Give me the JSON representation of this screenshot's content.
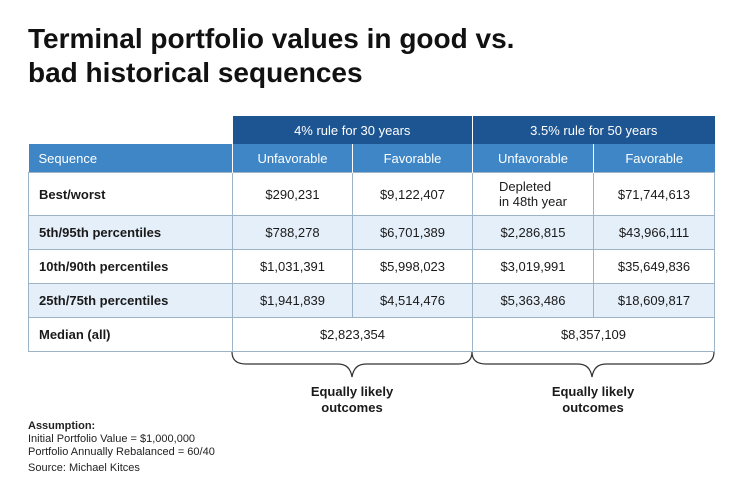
{
  "title": {
    "line1": "Terminal portfolio values in good vs.",
    "line2": "bad historical sequences"
  },
  "table": {
    "group_headers": [
      "",
      "4% rule for 30 years",
      "3.5% rule for 50 years"
    ],
    "column_headers": [
      "Sequence",
      "Unfavorable",
      "Favorable",
      "Unfavorable",
      "Favorable"
    ],
    "rows": [
      {
        "label": "Best/worst",
        "values": [
          "$290,231",
          "$9,122,407",
          "Depleted",
          "$71,744,613"
        ],
        "note": "in 48th year"
      },
      {
        "label": "5th/95th percentiles",
        "values": [
          "$788,278",
          "$6,701,389",
          "$2,286,815",
          "$43,966,111"
        ]
      },
      {
        "label": "10th/90th percentiles",
        "values": [
          "$1,031,391",
          "$5,998,023",
          "$3,019,991",
          "$35,649,836"
        ]
      },
      {
        "label": "25th/75th percentiles",
        "values": [
          "$1,941,839",
          "$4,514,476",
          "$5,363,486",
          "$18,609,817"
        ]
      },
      {
        "label": "Median (all)",
        "values": [
          "$2,823,354",
          "$8,357,109"
        ]
      }
    ]
  },
  "outcomes": [
    {
      "line1": "Equally likely",
      "line2": "outcomes"
    },
    {
      "line1": "Equally likely",
      "line2": "outcomes"
    }
  ],
  "notes": {
    "heading": "Assumption:",
    "line1": "Initial Portfolio Value = $1,000,000",
    "line2": "Portfolio Annually Rebalanced = 60/40",
    "source": "Source: Michael Kitces"
  },
  "colors": {
    "group_header_bg": "#1d5592",
    "column_header_bg": "#3f86c6",
    "alt_row_bg": "#e4eff9",
    "border": "#9db3c8"
  }
}
